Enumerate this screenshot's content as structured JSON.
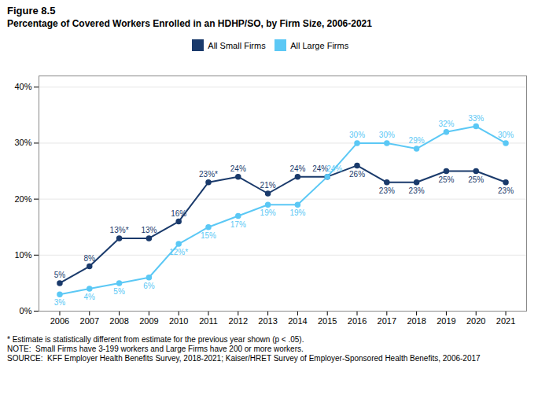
{
  "chart_data": {
    "type": "line",
    "title": "Figure 8.5",
    "subtitle": "Percentage of Covered Workers Enrolled in an HDHP/SO, by Firm Size, 2006-2021",
    "x": [
      2006,
      2007,
      2008,
      2009,
      2010,
      2011,
      2012,
      2013,
      2014,
      2015,
      2016,
      2017,
      2018,
      2019,
      2020,
      2021
    ],
    "series": [
      {
        "name": "All Small Firms",
        "color": "#1a3a6b",
        "values": [
          5,
          8,
          13,
          13,
          16,
          23,
          24,
          21,
          24,
          24,
          26,
          23,
          23,
          25,
          25,
          23
        ],
        "value_labels": [
          "5%",
          "8%",
          "13%*",
          "13%",
          "16%",
          "23%*",
          "24%",
          "21%",
          "24%",
          "24%",
          "26%",
          "23%",
          "23%",
          "25%",
          "25%",
          "23%"
        ]
      },
      {
        "name": "All Large Firms",
        "color": "#5bc8f5",
        "values": [
          3,
          4,
          5,
          6,
          12,
          15,
          17,
          19,
          19,
          24,
          30,
          30,
          29,
          32,
          33,
          30
        ],
        "value_labels": [
          "3%",
          "4%",
          "5%",
          "6%",
          "12%*",
          "15%",
          "17%",
          "19%",
          "19%",
          "24%",
          "30%",
          "30%",
          "29%",
          "32%",
          "33%",
          "30%"
        ]
      }
    ],
    "xlim": [
      2005.3,
      2021.7
    ],
    "xticks": [
      2006,
      2007,
      2008,
      2009,
      2010,
      2011,
      2012,
      2013,
      2014,
      2015,
      2016,
      2017,
      2018,
      2019,
      2020,
      2021
    ],
    "ylim": [
      0,
      42
    ],
    "yticks": [
      {
        "value": 0,
        "label": "0%"
      },
      {
        "value": 10,
        "label": "10%"
      },
      {
        "value": 20,
        "label": "20%"
      },
      {
        "value": 30,
        "label": "30%"
      },
      {
        "value": 40,
        "label": "40%"
      }
    ],
    "grid": true,
    "legend": "top",
    "data_labels": true,
    "marker": "circle",
    "annotations": [
      "* Estimate is statistically different from estimate for the previous year shown (p < .05).",
      "NOTE:  Small Firms have 3-199 workers and Large Firms have 200 or more workers.",
      "SOURCE:  KFF Employer Health Benefits Survey, 2018-2021; Kaiser/HRET Survey of Employer-Sponsored Health Benefits, 2006-2017"
    ]
  }
}
